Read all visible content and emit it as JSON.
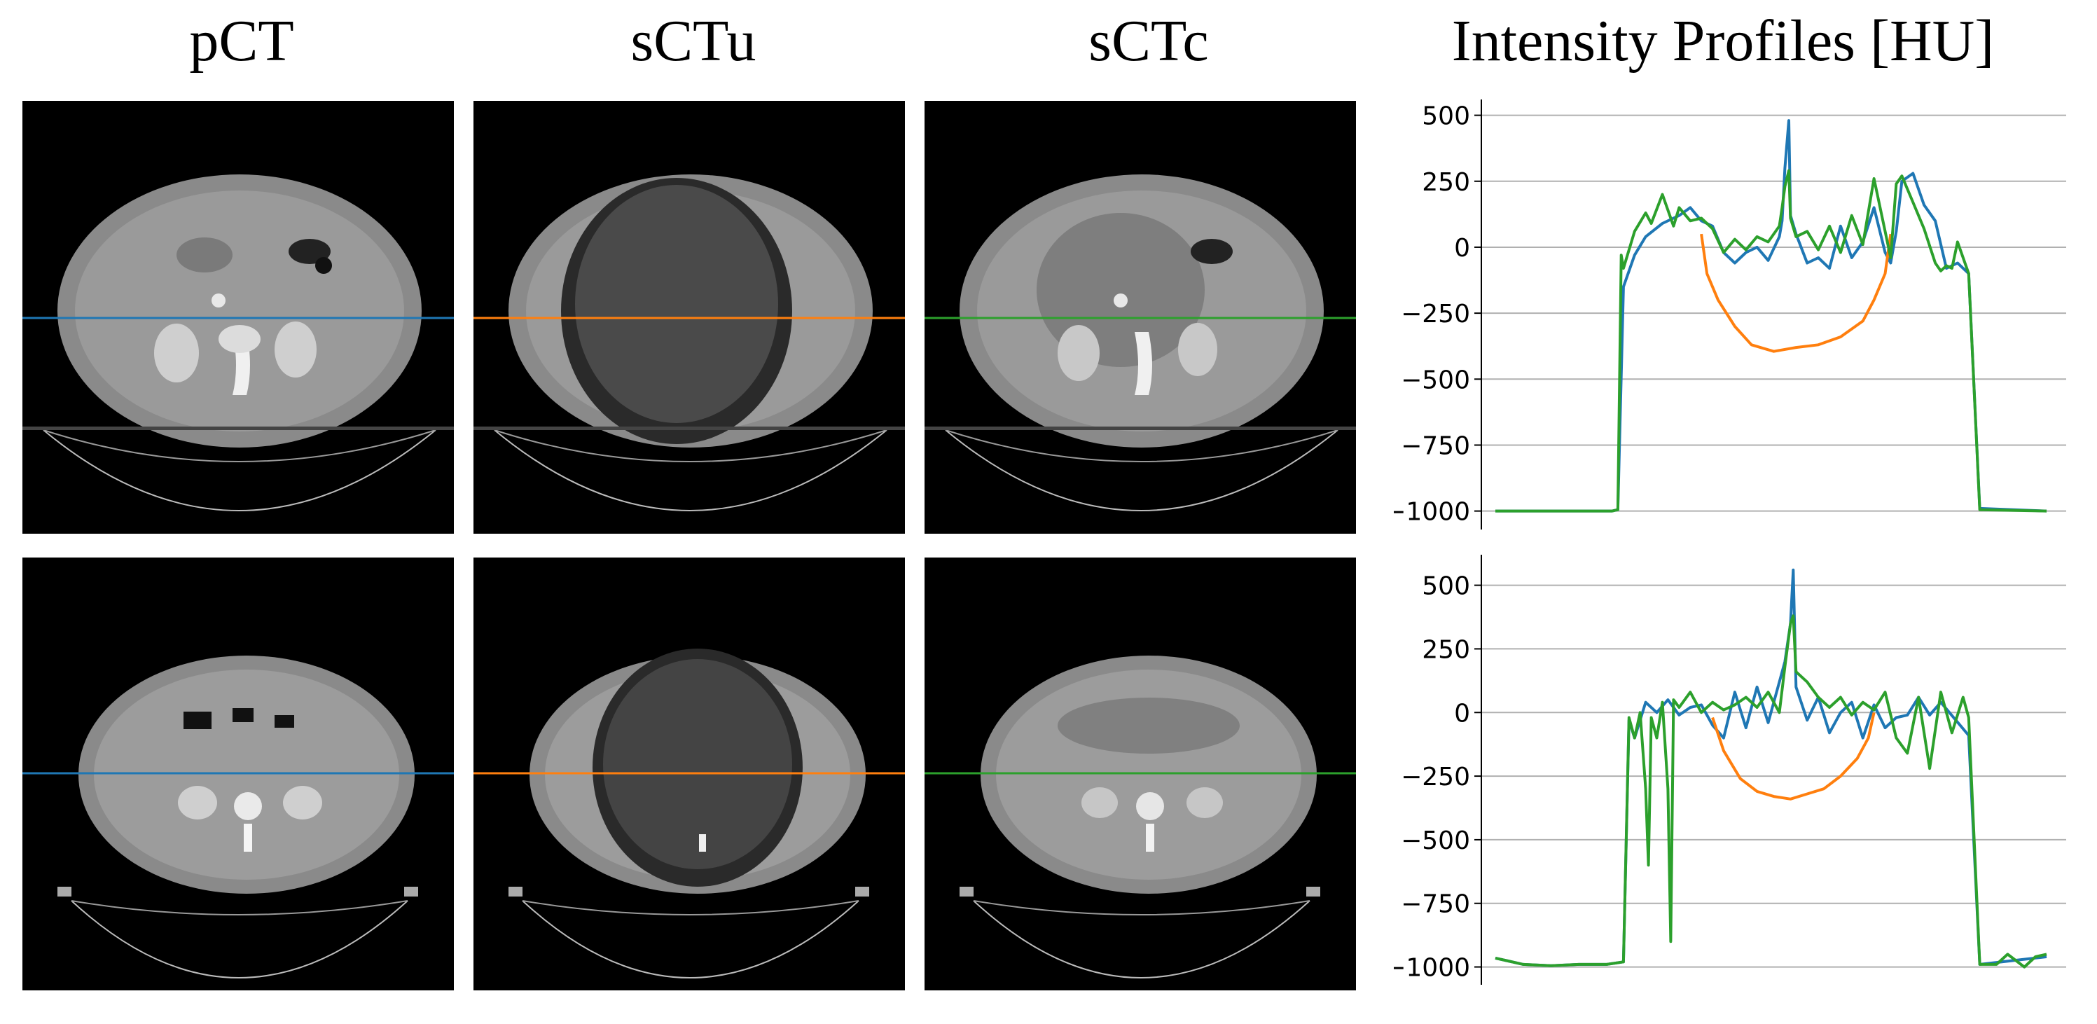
{
  "columns": [
    "pCT",
    "sCTu",
    "sCTc",
    "Intensity Profiles [HU]"
  ],
  "colors": {
    "pct": "#1f77b4",
    "sctu": "#ff7f0e",
    "sctc": "#2ca02c",
    "grid": "#b0b0b0",
    "axis": "#000000"
  },
  "chart_data": [
    {
      "type": "line",
      "title": "",
      "xlabel": "",
      "ylabel": "",
      "ylim": [
        -1070,
        560
      ],
      "xlim": [
        0,
        100
      ],
      "grid": "horizontal",
      "yticks": [
        500,
        250,
        0,
        -250,
        -500,
        -750,
        -1000
      ],
      "ytick_labels": [
        "500",
        "250",
        "0",
        "−250",
        "−500",
        "−750",
        "−1000"
      ],
      "series": [
        {
          "color": "#1f77b4",
          "x": [
            0,
            21,
            22,
            23,
            25,
            27,
            30,
            33,
            35,
            37,
            39,
            41,
            43,
            45,
            47,
            49,
            51,
            51.5,
            52,
            52.7,
            53,
            54,
            56,
            58,
            60,
            62,
            64,
            66,
            68,
            70,
            71,
            72,
            73,
            75,
            77,
            79,
            81,
            83,
            85,
            87,
            99
          ],
          "y": [
            -1000,
            -1000,
            -995,
            -150,
            -30,
            40,
            90,
            120,
            150,
            100,
            80,
            -20,
            -60,
            -20,
            0,
            -50,
            40,
            100,
            300,
            480,
            120,
            50,
            -60,
            -40,
            -80,
            80,
            -40,
            20,
            150,
            -20,
            -60,
            60,
            250,
            280,
            160,
            100,
            -80,
            -60,
            -100,
            -990,
            -1000
          ]
        },
        {
          "color": "#ff7f0e",
          "x": [
            37,
            38,
            40,
            43,
            46,
            50,
            54,
            58,
            62,
            66,
            68,
            70,
            71
          ],
          "y": [
            50,
            -100,
            -200,
            -300,
            -370,
            -395,
            -380,
            -370,
            -340,
            -280,
            -200,
            -100,
            50
          ]
        },
        {
          "color": "#2ca02c",
          "x": [
            0,
            21,
            22,
            22.6,
            23,
            25,
            27,
            28,
            30,
            32,
            33,
            35,
            37,
            39,
            41,
            43,
            45,
            47,
            49,
            51,
            51.5,
            52,
            52.7,
            53,
            54,
            56,
            58,
            60,
            62,
            64,
            66,
            68,
            70,
            71,
            72,
            73,
            75,
            77,
            79,
            80,
            81,
            82,
            83,
            85,
            87,
            99
          ],
          "y": [
            -1000,
            -1000,
            -995,
            -30,
            -80,
            60,
            130,
            90,
            200,
            80,
            150,
            100,
            110,
            70,
            -20,
            30,
            -10,
            40,
            20,
            80,
            150,
            230,
            290,
            110,
            40,
            60,
            -10,
            80,
            -20,
            120,
            10,
            260,
            60,
            -40,
            240,
            270,
            170,
            70,
            -60,
            -90,
            -70,
            -80,
            20,
            -100,
            -995,
            -1000
          ]
        }
      ]
    },
    {
      "type": "line",
      "title": "",
      "xlabel": "",
      "ylabel": "",
      "ylim": [
        -1070,
        620
      ],
      "xlim": [
        0,
        100
      ],
      "grid": "horizontal",
      "yticks": [
        500,
        250,
        0,
        -250,
        -500,
        -750,
        -1000
      ],
      "ytick_labels": [
        "500",
        "250",
        "0",
        "−250",
        "−500",
        "−750",
        "−1000"
      ],
      "series": [
        {
          "color": "#1f77b4",
          "x": [
            0,
            2,
            5,
            10,
            15,
            20,
            23,
            24,
            25,
            27,
            29,
            31,
            33,
            35,
            37,
            39,
            41,
            43,
            45,
            47,
            49,
            51,
            52,
            53,
            53.5,
            54,
            56,
            58,
            60,
            62,
            64,
            66,
            68,
            70,
            72,
            74,
            76,
            78,
            80,
            85,
            87,
            99
          ],
          "y": [
            -965,
            -975,
            -990,
            -995,
            -990,
            -990,
            -980,
            -30,
            -100,
            40,
            0,
            50,
            -10,
            20,
            30,
            -50,
            -100,
            80,
            -60,
            100,
            -40,
            120,
            200,
            350,
            560,
            100,
            -30,
            60,
            -80,
            0,
            40,
            -100,
            30,
            -60,
            -20,
            -10,
            60,
            -10,
            40,
            -90,
            -990,
            -960
          ]
        },
        {
          "color": "#ff7f0e",
          "x": [
            39,
            41,
            44,
            47,
            50,
            53,
            56,
            59,
            62,
            65,
            67,
            68
          ],
          "y": [
            -20,
            -150,
            -260,
            -310,
            -330,
            -340,
            -320,
            -300,
            -250,
            -180,
            -100,
            0
          ]
        },
        {
          "color": "#2ca02c",
          "x": [
            0,
            2,
            5,
            10,
            15,
            20,
            23,
            24,
            25,
            26,
            27,
            27.5,
            28,
            29,
            30,
            31,
            31.5,
            32,
            33,
            35,
            37,
            39,
            41,
            43,
            45,
            47,
            49,
            51,
            52,
            53,
            53.5,
            54,
            56,
            58,
            60,
            62,
            64,
            66,
            68,
            70,
            72,
            74,
            76,
            78,
            80,
            82,
            84,
            85,
            87,
            90,
            92,
            95,
            97,
            99
          ],
          "y": [
            -965,
            -975,
            -990,
            -995,
            -990,
            -990,
            -980,
            -20,
            -100,
            0,
            -300,
            -600,
            -20,
            -100,
            40,
            -300,
            -900,
            50,
            20,
            80,
            0,
            40,
            10,
            30,
            60,
            20,
            80,
            0,
            180,
            350,
            380,
            160,
            120,
            60,
            20,
            60,
            -10,
            40,
            10,
            80,
            -100,
            -160,
            60,
            -220,
            80,
            -80,
            60,
            -20,
            -990,
            -990,
            -950,
            -1000,
            -960,
            -950
          ]
        }
      ]
    }
  ]
}
